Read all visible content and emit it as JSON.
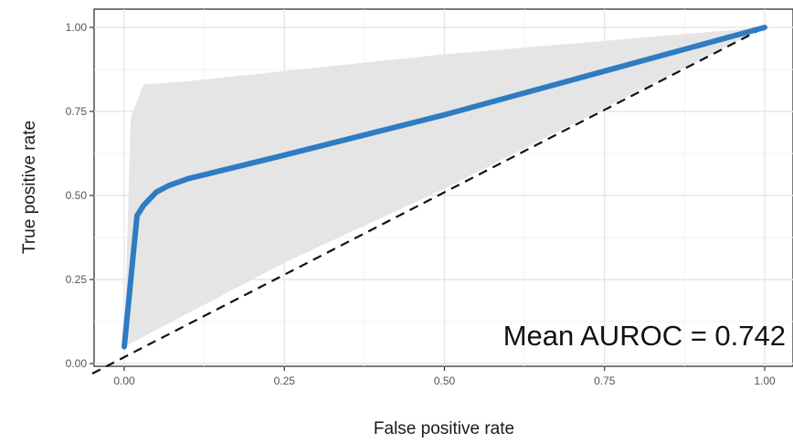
{
  "chart_data": {
    "type": "line",
    "xlabel": "False positive rate",
    "ylabel": "True positive rate",
    "xlim": [
      -0.05,
      1.0
    ],
    "ylim": [
      -0.03,
      1.05
    ],
    "x_ticks": [
      0.0,
      0.25,
      0.5,
      0.75,
      1.0
    ],
    "y_ticks": [
      0.0,
      0.25,
      0.5,
      0.75,
      1.0
    ],
    "x_tick_labels": [
      "0.00",
      "0.25",
      "0.50",
      "0.75",
      "1.00"
    ],
    "y_tick_labels": [
      "0.00",
      "0.25",
      "0.50",
      "0.75",
      "1.00"
    ],
    "grid": true,
    "annotation": "Mean AUROC = 0.742",
    "series": [
      {
        "kind": "roc_curve",
        "color": "#2e7cc2",
        "x": [
          0.0,
          0.0,
          0.02,
          0.03,
          0.05,
          0.07,
          0.1,
          0.25,
          0.5,
          0.75,
          1.0
        ],
        "y": [
          0.05,
          0.05,
          0.44,
          0.47,
          0.51,
          0.53,
          0.55,
          0.62,
          0.74,
          0.87,
          1.0
        ]
      },
      {
        "kind": "confidence_band",
        "color": "#e5e5e5",
        "upper": {
          "x": [
            0.0,
            0.01,
            0.03,
            0.1,
            0.25,
            0.5,
            0.75,
            1.0
          ],
          "y": [
            0.05,
            0.73,
            0.83,
            0.84,
            0.87,
            0.92,
            0.96,
            1.0
          ]
        },
        "lower": {
          "x": [
            0.0,
            0.25,
            0.5,
            0.75,
            1.0
          ],
          "y": [
            0.05,
            0.3,
            0.52,
            0.76,
            1.0
          ]
        }
      },
      {
        "kind": "chance_line",
        "color": "#111111",
        "x": [
          -0.05,
          1.0
        ],
        "y": [
          -0.03,
          1.0
        ]
      }
    ]
  }
}
